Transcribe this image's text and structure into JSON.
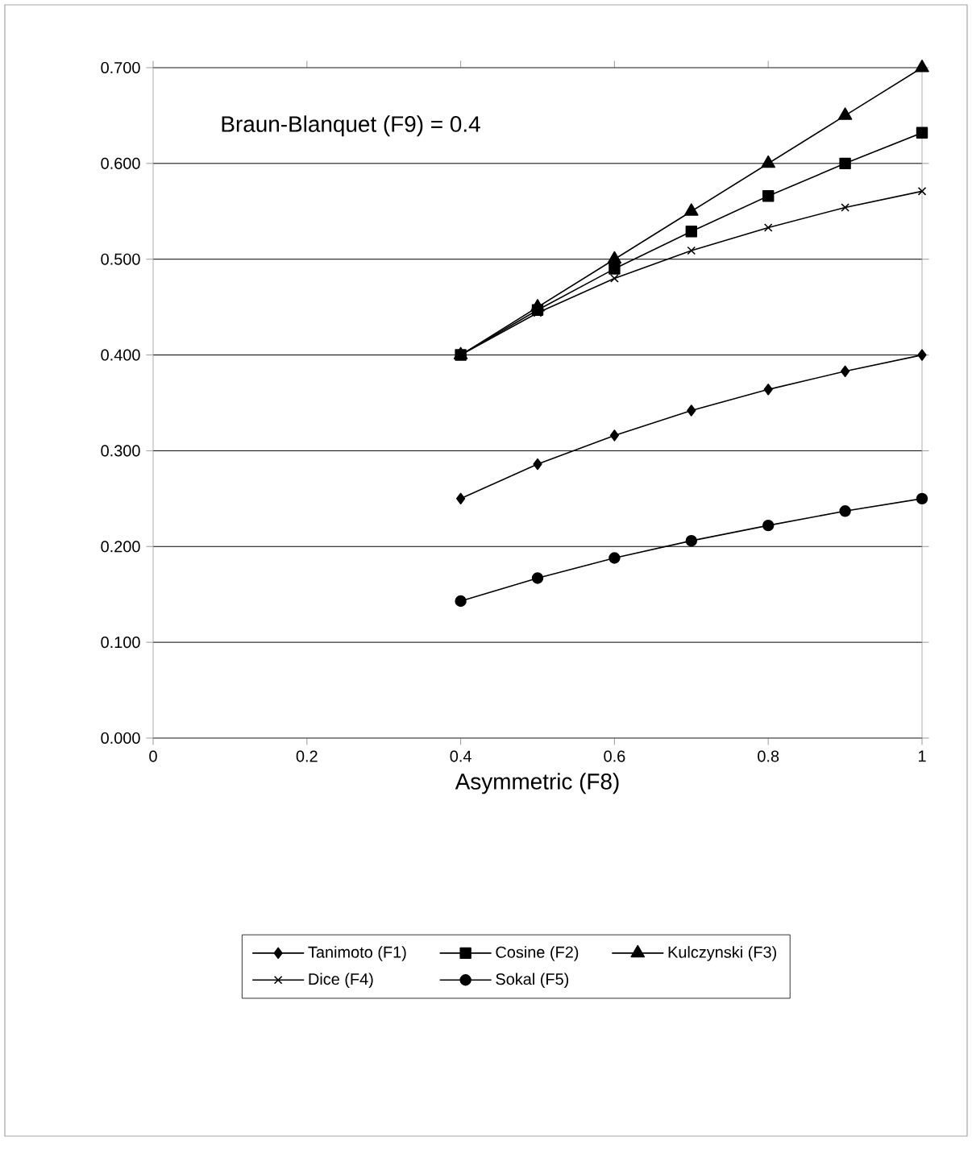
{
  "chart_data": {
    "type": "line",
    "xlabel": "Asymmetric (F8)",
    "annotations": [
      "Braun-Blanquet (F9) = 0.4"
    ],
    "x": [
      0.4,
      0.5,
      0.6,
      0.7,
      0.8,
      0.9,
      1
    ],
    "series": [
      {
        "name": "Tanimoto (F1)",
        "color": "#000000",
        "marker": "diamond",
        "values": [
          0.25,
          0.286,
          0.316,
          0.342,
          0.364,
          0.383,
          0.4
        ]
      },
      {
        "name": "Cosine (F2)",
        "color": "#000000",
        "marker": "square",
        "values": [
          0.4,
          0.447,
          0.49,
          0.529,
          0.566,
          0.6,
          0.632
        ]
      },
      {
        "name": "Kulczynski (F3)",
        "color": "#000000",
        "marker": "triangle",
        "values": [
          0.4,
          0.45,
          0.5,
          0.55,
          0.6,
          0.65,
          0.7
        ]
      },
      {
        "name": "Dice (F4)",
        "color": "#000000",
        "marker": "cross",
        "values": [
          0.4,
          0.444,
          0.48,
          0.509,
          0.533,
          0.554,
          0.571
        ]
      },
      {
        "name": "Sokal (F5)",
        "color": "#000000",
        "marker": "circle",
        "values": [
          0.143,
          0.167,
          0.188,
          0.206,
          0.222,
          0.237,
          0.25
        ]
      }
    ],
    "xlim": [
      0,
      1
    ],
    "xticks": [
      0,
      0.2,
      0.4,
      0.6,
      0.8,
      1
    ],
    "ylim": [
      0,
      0.7
    ],
    "yticks": [
      {
        "value": 0,
        "label": "0.000"
      },
      {
        "value": 0.1,
        "label": "0.100"
      },
      {
        "value": 0.2,
        "label": "0.200"
      },
      {
        "value": 0.3,
        "label": "0.300"
      },
      {
        "value": 0.4,
        "label": "0.400"
      },
      {
        "value": 0.5,
        "label": "0.500"
      },
      {
        "value": 0.6,
        "label": "0.600"
      },
      {
        "value": 0.7,
        "label": "0.700"
      }
    ],
    "grid": "y",
    "legend": "bottom",
    "line_style": "solid"
  }
}
